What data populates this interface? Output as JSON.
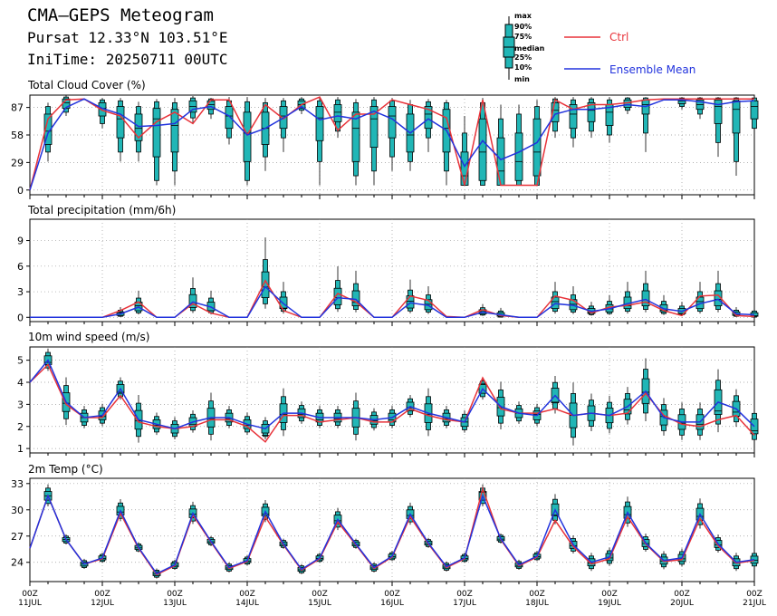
{
  "header": {
    "title": "CMA—GEPS Meteogram",
    "location": "Pursat 12.33°N 103.51°E",
    "init_time": "IniTime: 20250711 00UTC"
  },
  "legend": {
    "box_labels": [
      "max",
      "90%",
      "75%",
      "median",
      "25%",
      "10%",
      "min"
    ],
    "ctrl_label": "Ctrl",
    "mean_label": "Ensemble Mean"
  },
  "colors": {
    "ctrl": "#e8333a",
    "mean": "#2233dd",
    "box": "#21b6b6",
    "grid": "#999999"
  },
  "x_axis": {
    "tick_times": [
      "00Z",
      "00Z",
      "00Z",
      "00Z",
      "00Z",
      "00Z",
      "00Z",
      "00Z",
      "00Z",
      "00Z",
      "00Z"
    ],
    "tick_dates": [
      "11JUL",
      "12JUL",
      "13JUL",
      "14JUL",
      "15JUL",
      "16JUL",
      "17JUL",
      "18JUL",
      "19JUL",
      "20JUL",
      "21JUL"
    ],
    "step_hours": 6
  },
  "chart_data": [
    {
      "type": "box",
      "title": "Total Cloud Cover (%)",
      "ylim": [
        -5,
        100
      ],
      "yticks": [
        0,
        29,
        58,
        87
      ],
      "ctrl": [
        0,
        75,
        95,
        96,
        84,
        78,
        55,
        72,
        82,
        70,
        95,
        95,
        58,
        90,
        75,
        90,
        98,
        63,
        80,
        80,
        95,
        90,
        85,
        76,
        5,
        95,
        5,
        5,
        5,
        95,
        85,
        90,
        90,
        92,
        95,
        96,
        96,
        96,
        96,
        96,
        96
      ],
      "mean": [
        0,
        60,
        87,
        96,
        86,
        80,
        67,
        68,
        70,
        85,
        88,
        78,
        58,
        65,
        76,
        88,
        74,
        78,
        75,
        83,
        75,
        60,
        75,
        63,
        25,
        52,
        32,
        40,
        50,
        80,
        85,
        85,
        87,
        90,
        88,
        95,
        95,
        93,
        90,
        93,
        94
      ],
      "boxes": [
        {
          "i": 1,
          "min": 30,
          "p10": 40,
          "p25": 48,
          "med": 62,
          "p75": 80,
          "p90": 88,
          "max": 92
        },
        {
          "i": 2,
          "min": 78,
          "p10": 82,
          "p25": 86,
          "med": 92,
          "p75": 96,
          "p90": 98,
          "max": 100
        },
        {
          "i": 4,
          "min": 65,
          "p10": 70,
          "p25": 78,
          "med": 86,
          "p75": 92,
          "p90": 95,
          "max": 97
        },
        {
          "i": 5,
          "min": 30,
          "p10": 40,
          "p25": 55,
          "med": 75,
          "p75": 88,
          "p90": 94,
          "max": 97
        },
        {
          "i": 6,
          "min": 30,
          "p10": 40,
          "p25": 52,
          "med": 65,
          "p75": 80,
          "p90": 88,
          "max": 93
        },
        {
          "i": 7,
          "min": 5,
          "p10": 10,
          "p25": 35,
          "med": 75,
          "p75": 86,
          "p90": 93,
          "max": 96
        },
        {
          "i": 8,
          "min": 5,
          "p10": 20,
          "p25": 40,
          "med": 68,
          "p75": 85,
          "p90": 92,
          "max": 97
        },
        {
          "i": 9,
          "min": 70,
          "p10": 76,
          "p25": 82,
          "med": 88,
          "p75": 94,
          "p90": 97,
          "max": 99
        },
        {
          "i": 10,
          "min": 75,
          "p10": 80,
          "p25": 85,
          "med": 90,
          "p75": 94,
          "p90": 96,
          "max": 97
        },
        {
          "i": 11,
          "min": 48,
          "p10": 55,
          "p25": 65,
          "med": 78,
          "p75": 88,
          "p90": 94,
          "max": 98
        },
        {
          "i": 12,
          "min": 5,
          "p10": 10,
          "p25": 30,
          "med": 60,
          "p75": 82,
          "p90": 93,
          "max": 98
        },
        {
          "i": 13,
          "min": 20,
          "p10": 35,
          "p25": 48,
          "med": 65,
          "p75": 82,
          "p90": 92,
          "max": 97
        },
        {
          "i": 14,
          "min": 40,
          "p10": 55,
          "p25": 65,
          "med": 78,
          "p75": 88,
          "p90": 94,
          "max": 97
        },
        {
          "i": 15,
          "min": 80,
          "p10": 84,
          "p25": 86,
          "med": 90,
          "p75": 94,
          "p90": 96,
          "max": 98
        },
        {
          "i": 16,
          "min": 5,
          "p10": 30,
          "p25": 52,
          "med": 76,
          "p75": 88,
          "p90": 94,
          "max": 98
        },
        {
          "i": 17,
          "min": 55,
          "p10": 62,
          "p25": 72,
          "med": 82,
          "p75": 90,
          "p90": 95,
          "max": 98
        },
        {
          "i": 18,
          "min": 5,
          "p10": 15,
          "p25": 30,
          "med": 65,
          "p75": 82,
          "p90": 92,
          "max": 96
        },
        {
          "i": 19,
          "min": 5,
          "p10": 20,
          "p25": 45,
          "med": 75,
          "p75": 88,
          "p90": 95,
          "max": 98
        },
        {
          "i": 20,
          "min": 20,
          "p10": 35,
          "p25": 55,
          "med": 78,
          "p75": 88,
          "p90": 94,
          "max": 97
        },
        {
          "i": 21,
          "min": 20,
          "p10": 30,
          "p25": 40,
          "med": 58,
          "p75": 80,
          "p90": 90,
          "max": 95
        },
        {
          "i": 22,
          "min": 40,
          "p10": 55,
          "p25": 65,
          "med": 80,
          "p75": 88,
          "p90": 93,
          "max": 96
        },
        {
          "i": 23,
          "min": 5,
          "p10": 20,
          "p25": 40,
          "med": 65,
          "p75": 85,
          "p90": 92,
          "max": 95
        },
        {
          "i": 24,
          "min": 5,
          "p10": 5,
          "p25": 5,
          "med": 15,
          "p75": 40,
          "p90": 60,
          "max": 78
        },
        {
          "i": 25,
          "min": 5,
          "p10": 5,
          "p25": 10,
          "med": 40,
          "p75": 75,
          "p90": 92,
          "max": 97
        },
        {
          "i": 26,
          "min": 5,
          "p10": 5,
          "p25": 5,
          "med": 20,
          "p75": 55,
          "p90": 75,
          "max": 90
        },
        {
          "i": 27,
          "min": 5,
          "p10": 5,
          "p25": 10,
          "med": 30,
          "p75": 60,
          "p90": 80,
          "max": 90
        },
        {
          "i": 28,
          "min": 5,
          "p10": 5,
          "p25": 15,
          "med": 40,
          "p75": 75,
          "p90": 88,
          "max": 95
        },
        {
          "i": 29,
          "min": 55,
          "p10": 62,
          "p25": 72,
          "med": 84,
          "p75": 92,
          "p90": 96,
          "max": 98
        },
        {
          "i": 30,
          "min": 45,
          "p10": 55,
          "p25": 65,
          "med": 80,
          "p75": 90,
          "p90": 95,
          "max": 98
        },
        {
          "i": 31,
          "min": 55,
          "p10": 62,
          "p25": 72,
          "med": 84,
          "p75": 92,
          "p90": 96,
          "max": 98
        },
        {
          "i": 32,
          "min": 50,
          "p10": 58,
          "p25": 68,
          "med": 82,
          "p75": 90,
          "p90": 95,
          "max": 98
        },
        {
          "i": 33,
          "min": 80,
          "p10": 84,
          "p25": 87,
          "med": 92,
          "p75": 95,
          "p90": 97,
          "max": 98
        },
        {
          "i": 34,
          "min": 40,
          "p10": 60,
          "p25": 80,
          "med": 90,
          "p75": 95,
          "p90": 97,
          "max": 98
        },
        {
          "i": 36,
          "min": 85,
          "p10": 88,
          "p25": 91,
          "med": 94,
          "p75": 96,
          "p90": 97,
          "max": 98
        },
        {
          "i": 37,
          "min": 75,
          "p10": 80,
          "p25": 85,
          "med": 90,
          "p75": 95,
          "p90": 97,
          "max": 98
        },
        {
          "i": 38,
          "min": 35,
          "p10": 50,
          "p25": 70,
          "med": 88,
          "p75": 95,
          "p90": 97,
          "max": 98
        },
        {
          "i": 39,
          "min": 15,
          "p10": 30,
          "p25": 60,
          "med": 85,
          "p75": 94,
          "p90": 97,
          "max": 98
        },
        {
          "i": 40,
          "min": 50,
          "p10": 65,
          "p25": 75,
          "med": 88,
          "p75": 94,
          "p90": 97,
          "max": 98
        }
      ]
    },
    {
      "type": "box",
      "title": "Total precipitation (mm/6h)",
      "ylim": [
        -0.5,
        11.5
      ],
      "yticks": [
        0,
        3,
        6,
        9
      ],
      "ctrl": [
        0,
        0,
        0,
        0,
        0,
        0.8,
        1.8,
        0,
        0,
        1.6,
        0.5,
        0,
        0,
        4.3,
        0.8,
        0,
        0,
        2.8,
        1.8,
        0,
        0,
        2.5,
        2.0,
        0.1,
        0,
        0.9,
        0.2,
        0,
        0,
        2.5,
        2.0,
        0.5,
        1.2,
        1.4,
        1.8,
        0.8,
        0.2,
        2.5,
        2.6,
        0.2,
        0.1
      ],
      "mean": [
        0,
        0,
        0,
        0,
        0,
        0.4,
        1.2,
        0,
        0,
        1.8,
        1.2,
        0,
        0,
        3.6,
        1.6,
        0,
        0,
        2.3,
        2.1,
        0,
        0,
        1.7,
        1.4,
        0,
        0,
        0.6,
        0.3,
        0,
        0,
        1.6,
        1.4,
        0.7,
        1.0,
        1.6,
        2.1,
        1.0,
        0.7,
        1.6,
        2.1,
        0.4,
        0.3
      ]
    },
    {
      "type": "box",
      "title": "10m wind speed (m/s)",
      "ylim": [
        0.8,
        5.6
      ],
      "yticks": [
        1,
        2,
        3,
        4,
        5
      ],
      "ctrl": [
        4.0,
        4.8,
        3.0,
        2.4,
        2.4,
        3.4,
        2.2,
        2.0,
        1.9,
        2.0,
        2.3,
        2.3,
        2.0,
        1.3,
        2.5,
        2.5,
        2.2,
        2.3,
        2.4,
        2.2,
        2.2,
        2.8,
        2.5,
        2.3,
        2.2,
        4.2,
        2.8,
        2.6,
        2.6,
        2.8,
        2.5,
        2.6,
        2.5,
        2.6,
        3.5,
        2.5,
        2.1,
        2.0,
        2.3,
        2.5,
        1.6
      ],
      "mean": [
        4.0,
        5.0,
        3.1,
        2.4,
        2.5,
        3.7,
        2.3,
        2.1,
        1.9,
        2.2,
        2.4,
        2.4,
        2.1,
        1.9,
        2.6,
        2.6,
        2.4,
        2.4,
        2.4,
        2.3,
        2.4,
        2.9,
        2.6,
        2.4,
        2.2,
        3.7,
        2.9,
        2.6,
        2.5,
        3.4,
        2.5,
        2.6,
        2.5,
        2.9,
        3.6,
        2.4,
        2.2,
        2.2,
        3.1,
        2.8,
        2.0
      ]
    },
    {
      "type": "box",
      "title": "2m Temp (°C)",
      "ylim": [
        21.8,
        33.6
      ],
      "yticks": [
        24,
        27,
        30,
        33
      ],
      "ctrl": [
        25.6,
        31.6,
        26.6,
        23.8,
        24.4,
        29.6,
        25.6,
        22.6,
        23.6,
        29.4,
        26.3,
        23.3,
        24.1,
        29.2,
        26.0,
        23.1,
        24.4,
        28.6,
        26.0,
        23.3,
        24.6,
        29.2,
        26.1,
        23.4,
        24.4,
        32.4,
        26.6,
        23.6,
        24.6,
        28.8,
        25.8,
        23.8,
        24.4,
        29.2,
        26.1,
        24.1,
        24.3,
        29.0,
        25.9,
        23.9,
        24.2
      ],
      "mean": [
        25.6,
        31.6,
        26.6,
        23.8,
        24.5,
        29.9,
        25.7,
        22.7,
        23.7,
        29.6,
        26.4,
        23.4,
        24.2,
        29.8,
        26.1,
        23.2,
        24.5,
        28.9,
        26.1,
        23.4,
        24.7,
        29.5,
        26.2,
        23.5,
        24.5,
        31.6,
        26.7,
        23.7,
        24.7,
        30.0,
        26.0,
        24.0,
        24.6,
        29.7,
        26.2,
        24.2,
        24.5,
        29.5,
        26.1,
        24.0,
        24.3
      ]
    }
  ]
}
